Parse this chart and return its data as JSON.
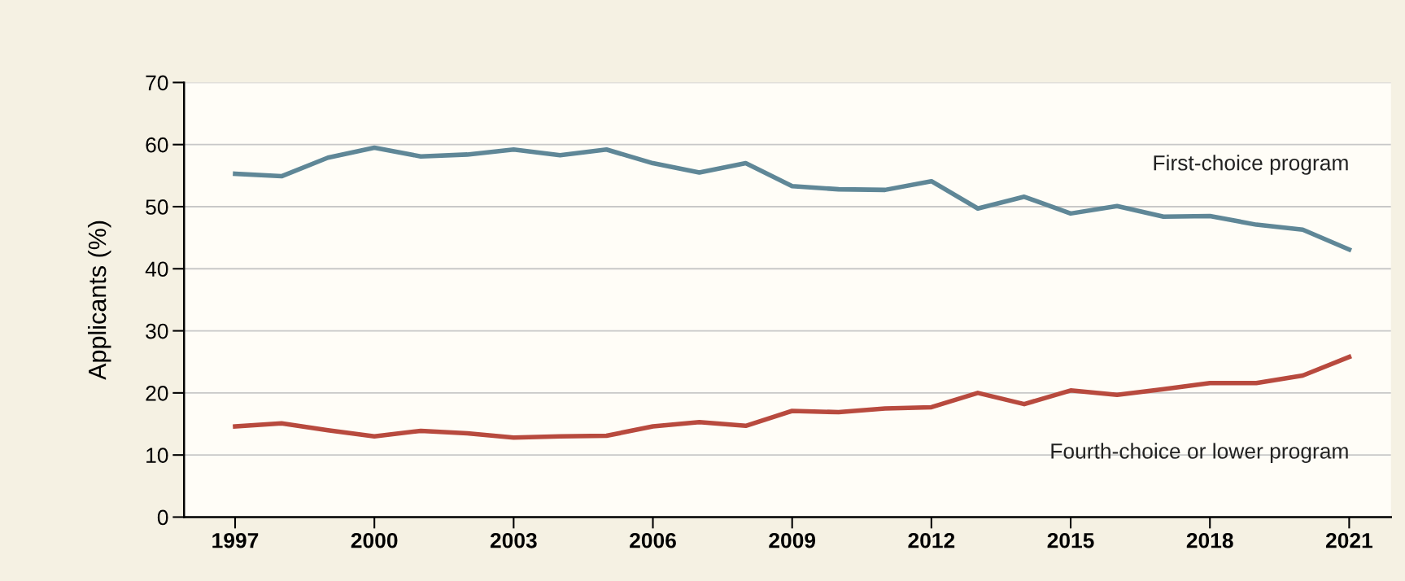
{
  "chart_data": {
    "type": "line",
    "ylabel": "Applicants (%)",
    "x": [
      1997,
      1998,
      1999,
      2000,
      2001,
      2002,
      2003,
      2004,
      2005,
      2006,
      2007,
      2008,
      2009,
      2010,
      2011,
      2012,
      2013,
      2014,
      2015,
      2016,
      2017,
      2018,
      2019,
      2020,
      2021
    ],
    "series": [
      {
        "name": "First-choice program",
        "color": "#5f8797",
        "values": [
          55.3,
          54.9,
          57.9,
          59.5,
          58.1,
          58.4,
          59.2,
          58.3,
          59.2,
          57.0,
          55.5,
          57.0,
          53.3,
          52.8,
          52.7,
          54.1,
          49.7,
          51.6,
          48.9,
          50.1,
          48.4,
          48.5,
          47.1,
          46.3,
          43.1
        ]
      },
      {
        "name": "Fourth-choice or lower program",
        "color": "#b84a3e",
        "values": [
          14.6,
          15.1,
          14.0,
          13.0,
          13.9,
          13.5,
          12.8,
          13.0,
          13.1,
          14.6,
          15.3,
          14.7,
          17.1,
          16.9,
          17.5,
          17.7,
          20.0,
          18.2,
          20.4,
          19.7,
          20.6,
          21.6,
          21.6,
          22.8,
          25.8
        ]
      }
    ],
    "xlim": [
      1995.9,
      2021.9
    ],
    "xticks": [
      1997,
      2000,
      2003,
      2006,
      2009,
      2012,
      2015,
      2018,
      2021
    ],
    "ylim": [
      0,
      70
    ],
    "yticks": [
      0,
      10,
      20,
      30,
      40,
      50,
      60,
      70
    ],
    "grid": "y",
    "legend": false,
    "marker": "none",
    "line_style": "solid"
  }
}
